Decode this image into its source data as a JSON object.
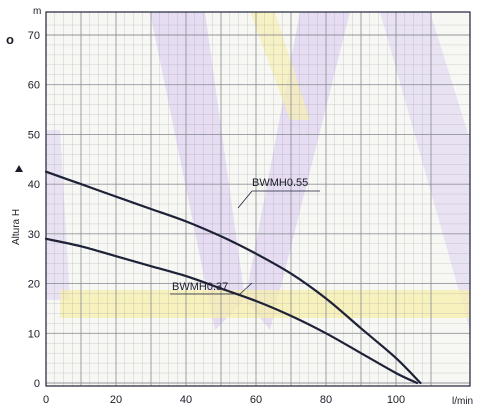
{
  "chart_data": {
    "type": "line",
    "y_unit": "m",
    "x_unit": "l/min",
    "ylabel": "Altura H",
    "corner_mark": "o",
    "xlim": [
      0,
      110
    ],
    "ylim": [
      0,
      73
    ],
    "xticks": [
      0,
      20,
      40,
      60,
      80,
      100
    ],
    "yticks": [
      0,
      10,
      20,
      30,
      40,
      50,
      60,
      70
    ],
    "grid": true,
    "series": [
      {
        "name": "BWMH0.55",
        "x": [
          0,
          10,
          20,
          30,
          40,
          50,
          60,
          70,
          80,
          90,
          100,
          107
        ],
        "y": [
          42.5,
          40.0,
          37.5,
          35.0,
          32.5,
          29.5,
          26.0,
          22.0,
          17.0,
          11.0,
          5.0,
          0
        ]
      },
      {
        "name": "BWMH0.37",
        "x": [
          0,
          10,
          20,
          30,
          40,
          50,
          60,
          70,
          80,
          90,
          100,
          106
        ],
        "y": [
          29.0,
          27.5,
          25.5,
          23.5,
          21.5,
          19.0,
          16.5,
          13.5,
          10.0,
          6.0,
          2.0,
          0
        ]
      }
    ],
    "colors": {
      "background": "#ffffff",
      "plot_background": "#f7f7f4",
      "grid": "#8a8c94",
      "curve": "#1e2238",
      "text": "#1c1c28",
      "watermark_purple": "#d8c8f0",
      "watermark_yellow": "#f6efb0"
    }
  }
}
